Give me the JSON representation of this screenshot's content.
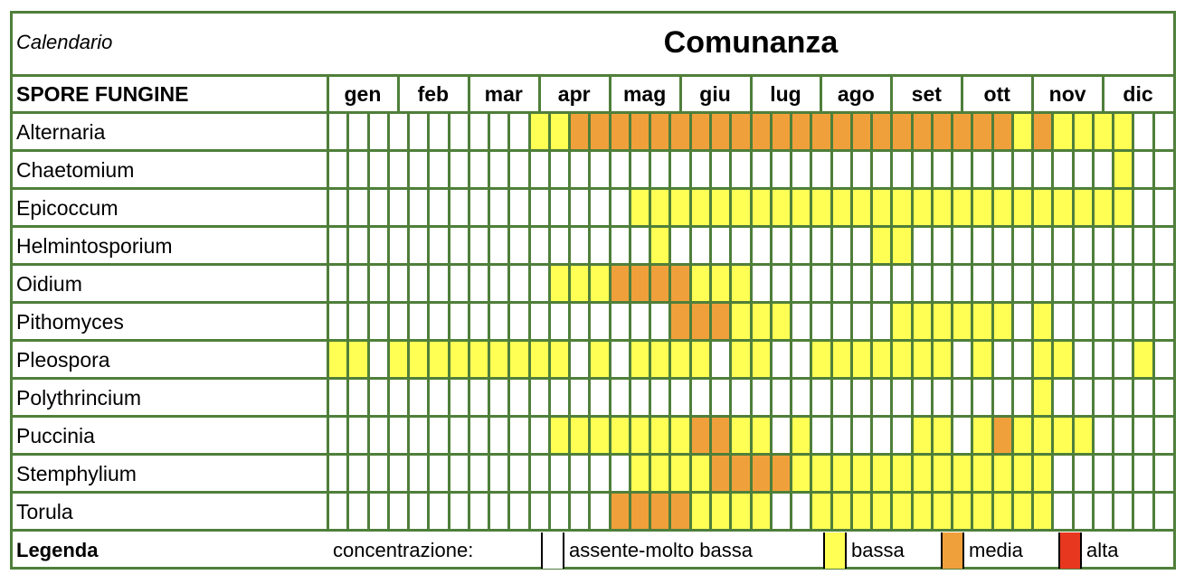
{
  "header": {
    "subtitle": "Calendario",
    "title": "Comunanza",
    "column_label": "SPORE FUNGINE"
  },
  "months": [
    "gen",
    "feb",
    "mar",
    "apr",
    "mag",
    "giu",
    "lug",
    "ago",
    "set",
    "ott",
    "nov",
    "dic"
  ],
  "colors": {
    "border": "#4f7f3a",
    "absent": "#ffffff",
    "low": "#ffff54",
    "medium": "#f0a03a",
    "high": "#e8371f"
  },
  "rows": [
    {
      "name": "Alternaria",
      "levels": "000000000011222222222222222222222212111100"
    },
    {
      "name": "Chaetomium",
      "levels": "000000000000000000000000000000000000000100"
    },
    {
      "name": "Epicoccum",
      "levels": "000000000000000111111111111111111111111100"
    },
    {
      "name": "Helmintosporium",
      "levels": "000000000000000010000000000110000000000000"
    },
    {
      "name": "Oidium",
      "levels": "000000000001112222111000000000000000000000"
    },
    {
      "name": "Pithomyces",
      "levels": "000000000000000002221110000011111101000000"
    },
    {
      "name": "Pleospora",
      "levels": "110111111111010111101100111111101001100010"
    },
    {
      "name": "Polythrincium",
      "levels": "000000000000000000000000000000000001000000"
    },
    {
      "name": "Puccinia",
      "levels": "000000000001111111221101000001101211110000"
    },
    {
      "name": "Stemphylium",
      "levels": "000000000000000111122221111111111111000000"
    },
    {
      "name": "Torula",
      "levels": "000000000000002222111100111111111111000000"
    }
  ],
  "legend": {
    "title": "Legenda",
    "label": "concentrazione:",
    "items": [
      {
        "text": "assente-molto bassa",
        "level": 0
      },
      {
        "text": "bassa",
        "level": 1
      },
      {
        "text": "media",
        "level": 2
      },
      {
        "text": "alta",
        "level": 3
      }
    ]
  }
}
